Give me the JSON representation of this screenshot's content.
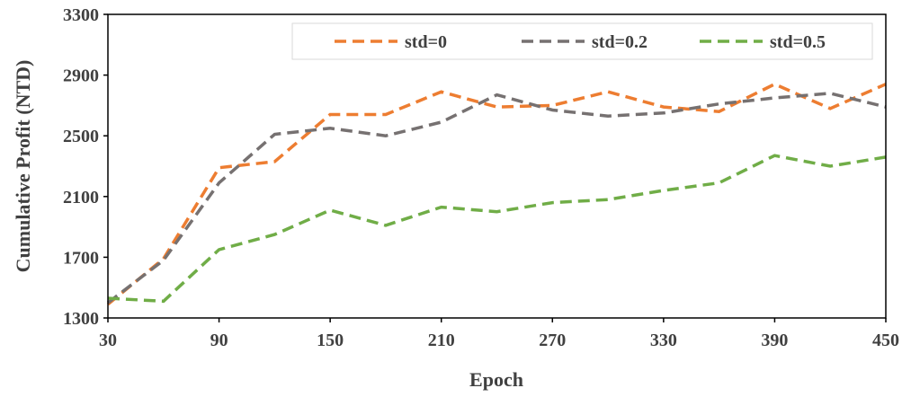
{
  "chart_data": {
    "type": "line",
    "xlabel": "Epoch",
    "ylabel": "Cumulative Profit (NTD)",
    "xlim": [
      30,
      450
    ],
    "ylim": [
      1300,
      3300
    ],
    "x_ticks": [
      30,
      90,
      150,
      210,
      270,
      330,
      390,
      450
    ],
    "y_ticks": [
      1300,
      1700,
      2100,
      2500,
      2900,
      3300
    ],
    "grid": false,
    "legend_position": "top-right",
    "x": [
      30,
      60,
      90,
      120,
      150,
      180,
      210,
      240,
      270,
      300,
      330,
      360,
      390,
      420,
      450
    ],
    "series": [
      {
        "name": "std=0",
        "color": "#ED7D31",
        "style": "dashed",
        "values": [
          1390,
          1690,
          2290,
          2330,
          2640,
          2640,
          2790,
          2690,
          2700,
          2790,
          2690,
          2660,
          2840,
          2680,
          2840
        ]
      },
      {
        "name": "std=0.2",
        "color": "#767171",
        "style": "dashed",
        "values": [
          1400,
          1680,
          2190,
          2510,
          2550,
          2500,
          2590,
          2770,
          2670,
          2630,
          2650,
          2710,
          2750,
          2780,
          2690
        ]
      },
      {
        "name": "std=0.5",
        "color": "#70AD47",
        "style": "dashed",
        "values": [
          1430,
          1410,
          1750,
          1850,
          2010,
          1910,
          2030,
          2000,
          2060,
          2080,
          2140,
          2190,
          2370,
          2300,
          2360
        ]
      }
    ]
  }
}
